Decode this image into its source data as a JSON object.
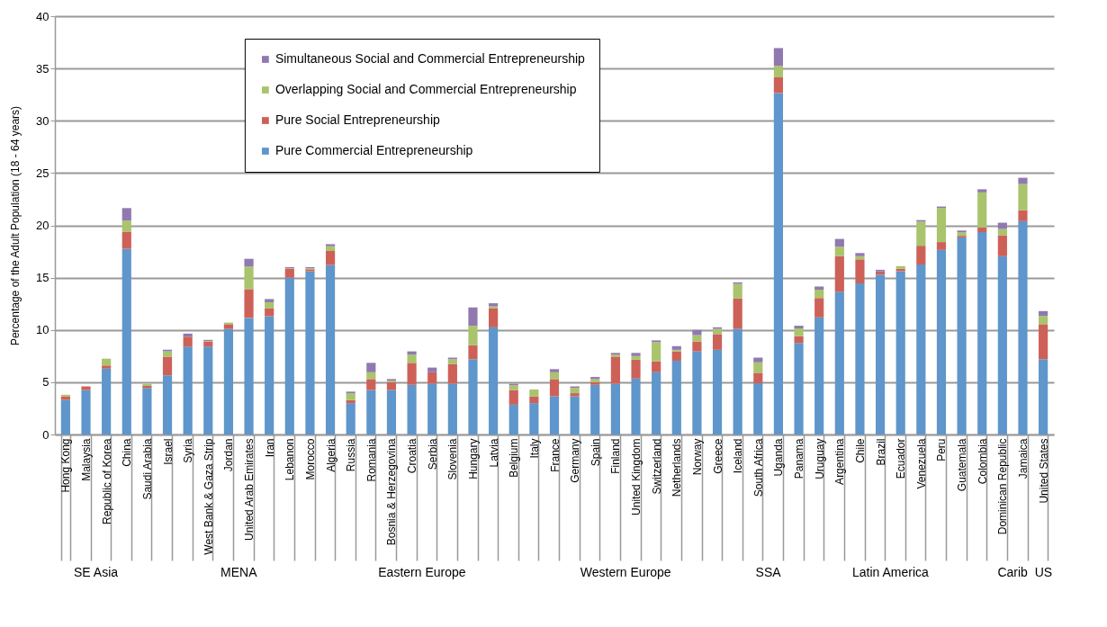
{
  "chart_data": {
    "type": "bar",
    "stacked": true,
    "ylabel": "Percentage of the Adult Population (18 - 64 years)",
    "categories": [
      "Hong Kong",
      "Malaysia",
      "Republic of Korea",
      "China",
      "Saudi Arabia",
      "Israel",
      "Syria",
      "West Bank & Gaza Strip",
      "Jordan",
      "United Arab Emirates",
      "Iran",
      "Lebanon",
      "Morocco",
      "Algeria",
      "Russia",
      "Romania",
      "Bosnia & Herzegovina",
      "Croatia",
      "Serbia",
      "Slovenia",
      "Hungary",
      "Latvia",
      "Belgium",
      "Italy",
      "France",
      "Germany",
      "Spain",
      "Finland",
      "United Kingdom",
      "Switzerland",
      "Netherlands",
      "Norway",
      "Greece",
      "Iceland",
      "South Africa",
      "Uganda",
      "Panama",
      "Uruguay",
      "Argentina",
      "Chile",
      "Brazil",
      "Ecuador",
      "Venezuela",
      "Peru",
      "Guatemala",
      "Colombia",
      "Dominican Republic",
      "Jamaica",
      "United States"
    ],
    "series": [
      {
        "name": "Pure Commercial Entrepreneurship",
        "color": "#5f96cb",
        "values": [
          3.3,
          4.25,
          6.3,
          17.75,
          4.45,
          5.65,
          8.4,
          8.4,
          10.1,
          11.15,
          11.3,
          15.0,
          15.6,
          16.2,
          3.0,
          4.25,
          4.25,
          4.75,
          4.85,
          4.85,
          7.2,
          10.25,
          2.85,
          3.0,
          3.65,
          3.65,
          4.75,
          4.85,
          5.35,
          5.95,
          7.05,
          7.95,
          8.1,
          10.1,
          4.9,
          32.65,
          8.75,
          11.2,
          13.65,
          14.45,
          15.3,
          15.6,
          16.25,
          17.65,
          18.85,
          19.35,
          17.05,
          20.4,
          7.2
        ]
      },
      {
        "name": "Pure Social Entrepreneurship",
        "color": "#cd6158",
        "values": [
          0.35,
          0.35,
          0.3,
          1.65,
          0.2,
          1.8,
          0.95,
          0.5,
          0.45,
          2.75,
          0.75,
          0.85,
          0.2,
          1.35,
          0.3,
          1.05,
          0.75,
          2.1,
          1.1,
          1.9,
          1.35,
          1.8,
          1.4,
          0.65,
          1.65,
          0.3,
          0.25,
          2.6,
          1.8,
          1.05,
          0.9,
          0.95,
          1.5,
          2.9,
          1.0,
          1.5,
          0.65,
          1.85,
          3.4,
          2.3,
          0.3,
          0.25,
          1.8,
          0.75,
          0.15,
          0.45,
          2.0,
          1.05,
          3.35
        ]
      },
      {
        "name": "Overlapping Social and Commercial Entrepreneurship",
        "color": "#a9c46c",
        "values": [
          0.15,
          0,
          0.65,
          1.05,
          0.2,
          0.5,
          0,
          0.05,
          0.15,
          2.15,
          0.6,
          0.05,
          0.1,
          0.45,
          0.65,
          0.65,
          0.15,
          0.8,
          0,
          0.45,
          1.85,
          0.2,
          0.45,
          0.65,
          0.65,
          0.5,
          0.3,
          0.2,
          0.35,
          1.85,
          0.15,
          0.6,
          0.5,
          1.4,
          1.0,
          1.1,
          0.75,
          0.8,
          0.9,
          0.3,
          0,
          0.25,
          2.3,
          3.25,
          0.35,
          3.35,
          0.6,
          2.5,
          0.8
        ]
      },
      {
        "name": "Simultaneous Social and Commercial Entrepreneurship",
        "color": "#9079b0",
        "values": [
          0,
          0,
          0,
          1.2,
          0,
          0.15,
          0.3,
          0.1,
          0,
          0.75,
          0.3,
          0.1,
          0.1,
          0.2,
          0.15,
          0.9,
          0.15,
          0.3,
          0.45,
          0.15,
          1.75,
          0.3,
          0.15,
          0,
          0.3,
          0.15,
          0.2,
          0.15,
          0.3,
          0.15,
          0.35,
          0.5,
          0.15,
          0.15,
          0.45,
          1.7,
          0.25,
          0.3,
          0.75,
          0.3,
          0.15,
          0,
          0.15,
          0.15,
          0.15,
          0.3,
          0.6,
          0.6,
          0.45
        ]
      }
    ],
    "ylim": [
      0,
      40
    ],
    "yticks": [
      0,
      5,
      10,
      15,
      20,
      25,
      30,
      35,
      40
    ],
    "grid": "y",
    "legend": "top left",
    "annotations": [
      "SE Asia",
      "MENA",
      "Eastern Europe",
      "Western Europe",
      "SSA",
      "Latin America",
      "Carib",
      "US"
    ]
  }
}
